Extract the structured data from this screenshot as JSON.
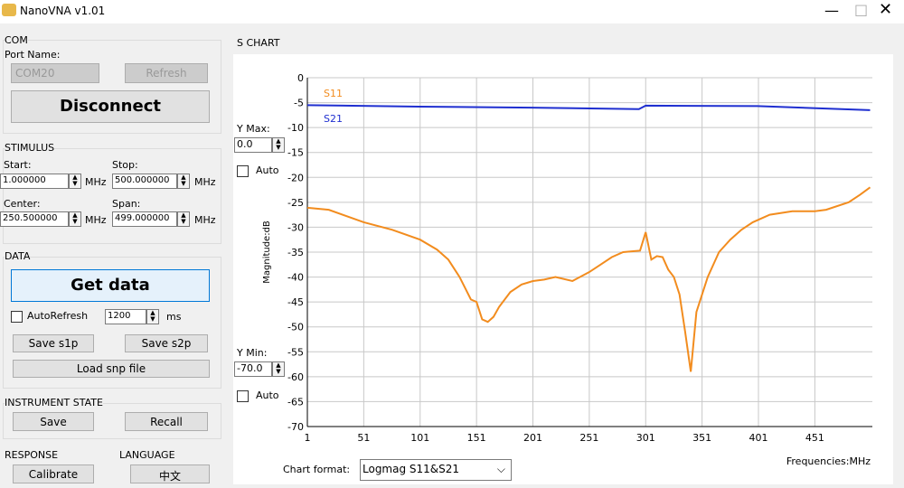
{
  "window": {
    "title": "NanoVNA v1.01"
  },
  "com": {
    "title": "COM",
    "port_label": "Port Name:",
    "port": "COM20",
    "refresh": "Refresh",
    "disconnect": "Disconnect"
  },
  "stimulus": {
    "title": "STIMULUS",
    "start_label": "Start:",
    "start": "1.000000",
    "start_unit": "MHz",
    "stop_label": "Stop:",
    "stop": "500.000000",
    "stop_unit": "MHz",
    "center_label": "Center:",
    "center": "250.500000",
    "center_unit": "MHz",
    "span_label": "Span:",
    "span": "499.000000",
    "span_unit": "MHz"
  },
  "data": {
    "title": "DATA",
    "get_data": "Get data",
    "auto_refresh": "AutoRefresh",
    "interval": "1200",
    "interval_unit": "ms",
    "save_s1p": "Save s1p",
    "save_s2p": "Save s2p",
    "load_snp": "Load snp file"
  },
  "instrument": {
    "title": "INSTRUMENT STATE",
    "save": "Save",
    "recall": "Recall"
  },
  "response": {
    "title": "RESPONSE",
    "calibrate": "Calibrate"
  },
  "language": {
    "title": "LANGUAGE",
    "button": "中文"
  },
  "chart_panel": {
    "title": "S CHART",
    "ymax_label": "Y Max:",
    "ymax": "0.0",
    "ymax_auto": "Auto",
    "ymin_label": "Y Min:",
    "ymin": "-70.0",
    "ymin_auto": "Auto",
    "format_label": "Chart format:",
    "format": "Logmag S11&S21"
  },
  "chart_data": {
    "type": "line",
    "y_label": "Magnitude:dB",
    "x_label": "Frequencies:MHz",
    "xlim": [
      1,
      502
    ],
    "xticks": [
      1,
      51,
      101,
      151,
      201,
      251,
      301,
      351,
      401,
      451
    ],
    "ylim": [
      -70,
      0
    ],
    "yticks": [
      0,
      -5,
      -10,
      -15,
      -20,
      -25,
      -30,
      -35,
      -40,
      -45,
      -50,
      -55,
      -60,
      -65,
      -70
    ],
    "grid": true,
    "series": [
      {
        "name": "S11",
        "color": "#f28c1e",
        "x": [
          1,
          20,
          51,
          76,
          101,
          116,
          126,
          136,
          146,
          151,
          156,
          161,
          166,
          171,
          181,
          191,
          201,
          211,
          221,
          236,
          251,
          261,
          271,
          281,
          291,
          296,
          301,
          306,
          311,
          316,
          321,
          326,
          331,
          336,
          341,
          346,
          356,
          366,
          376,
          386,
          396,
          411,
          431,
          451,
          461,
          481,
          491,
          500
        ],
        "values": [
          -26.1,
          -26.5,
          -29,
          -30.5,
          -32.5,
          -34.5,
          -36.5,
          -40,
          -44.5,
          -45,
          -48.5,
          -49,
          -48,
          -46,
          -43,
          -41.5,
          -40.8,
          -40.5,
          -40,
          -40.8,
          -39,
          -37.5,
          -36,
          -35,
          -34.8,
          -34.7,
          -31,
          -36.5,
          -35.8,
          -36,
          -38.5,
          -40,
          -43.5,
          -51,
          -59,
          -47,
          -40,
          -35,
          -32.5,
          -30.5,
          -29,
          -27.5,
          -26.8,
          -26.8,
          -26.5,
          -25,
          -23.5,
          -22
        ]
      },
      {
        "name": "S21",
        "color": "#1f2fd0",
        "x": [
          1,
          100,
          200,
          295,
          301,
          400,
          500
        ],
        "values": [
          -5.5,
          -5.8,
          -6,
          -6.3,
          -5.6,
          -5.7,
          -6.5
        ]
      }
    ]
  }
}
